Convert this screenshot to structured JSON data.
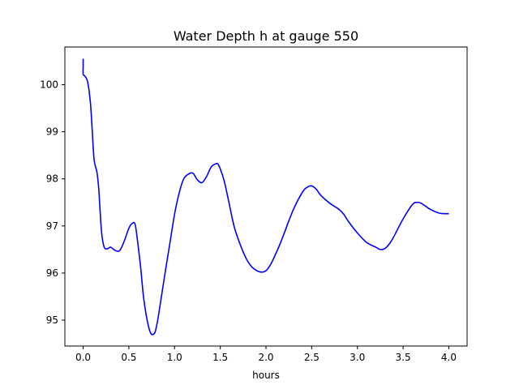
{
  "chart_data": {
    "type": "line",
    "title": "Water Depth h at gauge 550",
    "xlabel": "hours",
    "ylabel": "",
    "xlim": [
      -0.2,
      4.2
    ],
    "ylim": [
      94.45,
      100.8
    ],
    "xticks": [
      0.0,
      0.5,
      1.0,
      1.5,
      2.0,
      2.5,
      3.0,
      3.5,
      4.0
    ],
    "xtick_labels": [
      "0.0",
      "0.5",
      "1.0",
      "1.5",
      "2.0",
      "2.5",
      "3.0",
      "3.5",
      "4.0"
    ],
    "yticks": [
      95,
      96,
      97,
      98,
      99,
      100
    ],
    "ytick_labels": [
      "95",
      "96",
      "97",
      "98",
      "99",
      "100"
    ],
    "grid": false,
    "series": [
      {
        "color": "#0000ff",
        "x": [
          0.0,
          0.0,
          0.0,
          0.02,
          0.05,
          0.08,
          0.1,
          0.12,
          0.15,
          0.17,
          0.2,
          0.23,
          0.27,
          0.3,
          0.35,
          0.4,
          0.45,
          0.5,
          0.54,
          0.57,
          0.6,
          0.63,
          0.66,
          0.7,
          0.74,
          0.78,
          0.8,
          0.82,
          0.86,
          0.9,
          0.95,
          1.0,
          1.05,
          1.1,
          1.15,
          1.2,
          1.25,
          1.3,
          1.35,
          1.4,
          1.45,
          1.48,
          1.52,
          1.55,
          1.6,
          1.65,
          1.7,
          1.75,
          1.8,
          1.85,
          1.9,
          1.95,
          2.0,
          2.05,
          2.1,
          2.15,
          2.2,
          2.3,
          2.4,
          2.45,
          2.5,
          2.55,
          2.6,
          2.7,
          2.8,
          2.85,
          2.9,
          3.0,
          3.1,
          3.2,
          3.25,
          3.3,
          3.35,
          3.4,
          3.5,
          3.6,
          3.65,
          3.7,
          3.8,
          3.9,
          4.0
        ],
        "y": [
          100.55,
          100.4,
          100.22,
          100.18,
          100.05,
          99.6,
          99.0,
          98.4,
          98.15,
          97.8,
          96.9,
          96.55,
          96.52,
          96.55,
          96.48,
          96.48,
          96.68,
          96.95,
          97.06,
          97.02,
          96.6,
          96.1,
          95.5,
          95.0,
          94.72,
          94.72,
          94.85,
          95.05,
          95.55,
          96.05,
          96.65,
          97.25,
          97.7,
          98.0,
          98.1,
          98.12,
          97.98,
          97.92,
          98.05,
          98.25,
          98.32,
          98.3,
          98.1,
          97.9,
          97.45,
          97.0,
          96.7,
          96.45,
          96.25,
          96.12,
          96.05,
          96.02,
          96.05,
          96.18,
          96.38,
          96.6,
          96.85,
          97.35,
          97.72,
          97.82,
          97.85,
          97.78,
          97.65,
          97.48,
          97.35,
          97.25,
          97.1,
          96.85,
          96.65,
          96.55,
          96.5,
          96.52,
          96.62,
          96.78,
          97.15,
          97.45,
          97.5,
          97.48,
          97.35,
          97.27,
          97.26
        ]
      }
    ]
  }
}
